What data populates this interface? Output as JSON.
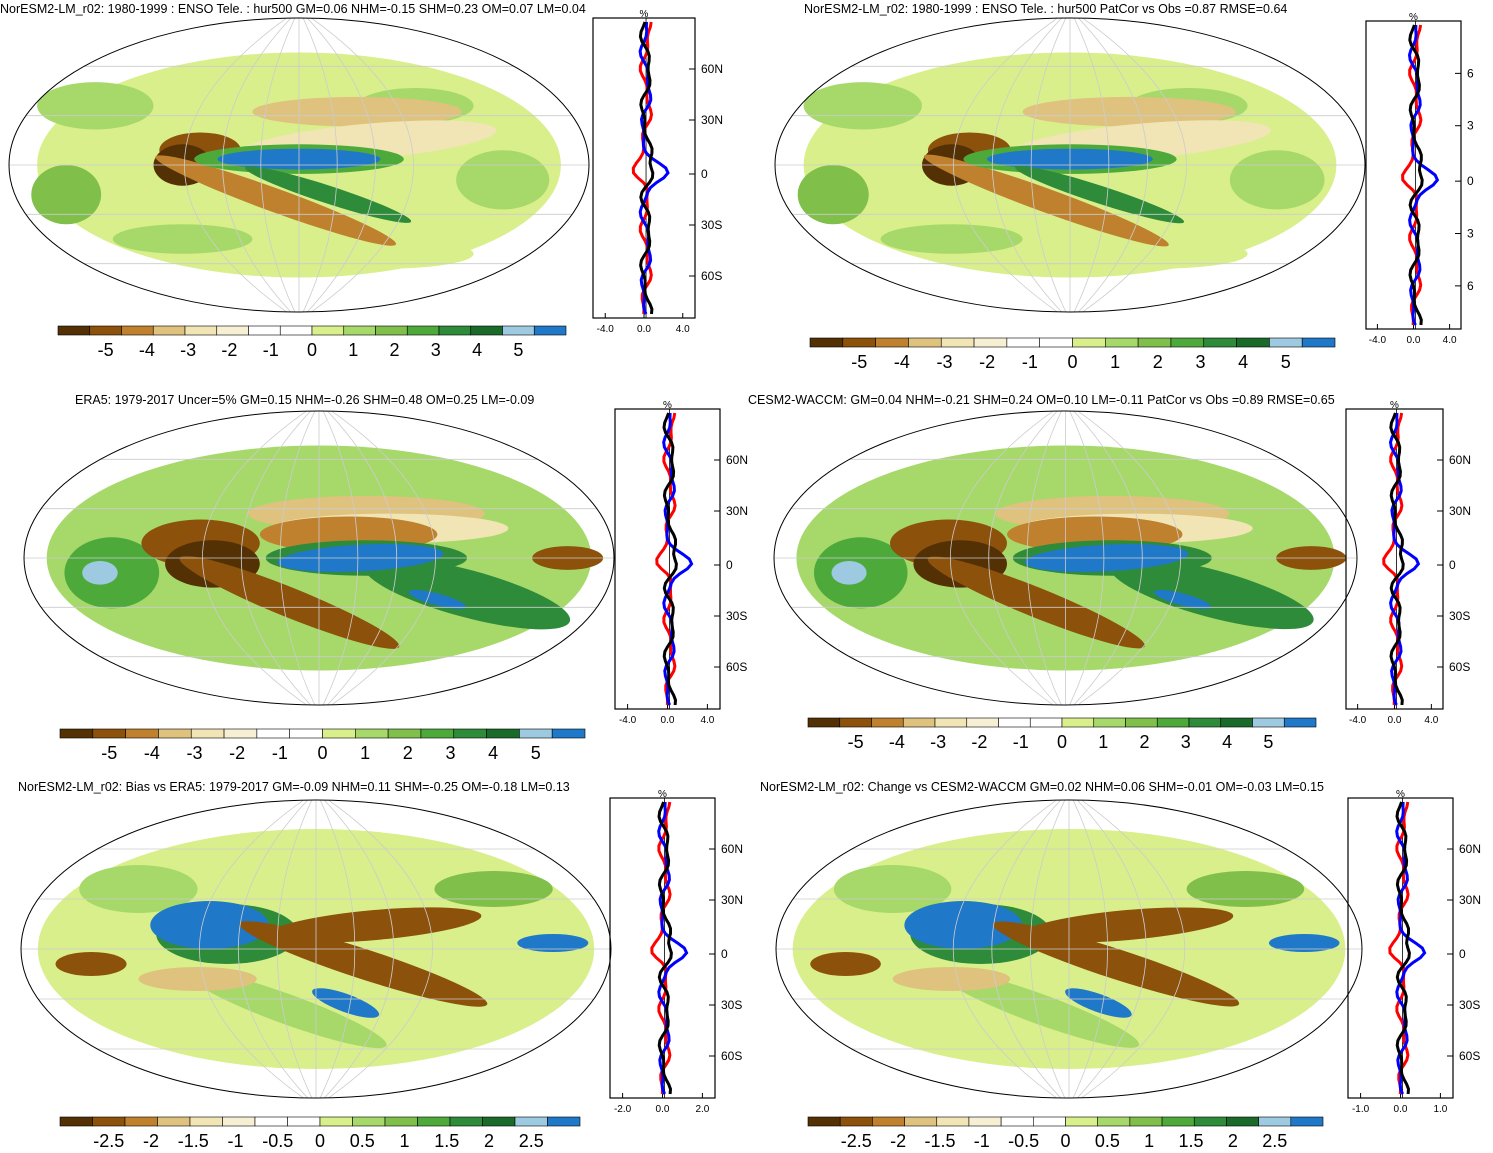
{
  "panels": [
    {
      "id": "p1",
      "title": "NorESM2-LM_r02: 1980-1999 : ENSO Tele. : hur500 GM=0.06 NHM=-0.15 SHM=0.23 OM=0.07 LM=0.04",
      "profile": {
        "unit": "%",
        "lat_ticks": [
          "60N",
          "30N",
          "0",
          "30S",
          "60S"
        ],
        "x_ticks": [
          "-4.0",
          "0.0",
          "4.0"
        ]
      },
      "colorbar": {
        "labels": [
          "-5",
          "-4",
          "-3",
          "-2",
          "-1",
          "0",
          "1",
          "2",
          "3",
          "4",
          "5"
        ]
      }
    },
    {
      "id": "p2",
      "title": "NorESM2-LM_r02: 1980-1999 : ENSO Tele. : hur500 PatCor vs Obs =0.87 RMSE=0.64",
      "profile": {
        "unit": "%",
        "lat_ticks": [
          "6",
          "3",
          "0",
          "3",
          "6"
        ],
        "x_ticks": [
          "-4.0",
          "0.0",
          "4.0"
        ]
      },
      "colorbar": {
        "labels": [
          "-5",
          "-4",
          "-3",
          "-2",
          "-1",
          "0",
          "1",
          "2",
          "3",
          "4",
          "5"
        ]
      }
    },
    {
      "id": "p3",
      "title": "ERA5: 1979-2017 Uncer=5% GM=0.15 NHM=-0.26 SHM=0.48 OM=0.25 LM=-0.09",
      "profile": {
        "unit": "%",
        "lat_ticks": [
          "60N",
          "30N",
          "0",
          "30S",
          "60S"
        ],
        "x_ticks": [
          "-4.0",
          "0.0",
          "4.0"
        ]
      },
      "colorbar": {
        "labels": [
          "-5",
          "-4",
          "-3",
          "-2",
          "-1",
          "0",
          "1",
          "2",
          "3",
          "4",
          "5"
        ]
      }
    },
    {
      "id": "p4",
      "title": "CESM2-WACCM: GM=0.04 NHM=-0.21 SHM=0.24 OM=0.10 LM=-0.11 PatCor vs Obs =0.89 RMSE=0.65",
      "profile": {
        "unit": "%",
        "lat_ticks": [
          "60N",
          "30N",
          "0",
          "30S",
          "60S"
        ],
        "x_ticks": [
          "-4.0",
          "0.0",
          "4.0"
        ]
      },
      "colorbar": {
        "labels": [
          "-5",
          "-4",
          "-3",
          "-2",
          "-1",
          "0",
          "1",
          "2",
          "3",
          "4",
          "5"
        ]
      }
    },
    {
      "id": "p5",
      "title": "NorESM2-LM_r02: Bias vs ERA5: 1979-2017 GM=-0.09 NHM=0.11 SHM=-0.25 OM=-0.18 LM=0.13",
      "profile": {
        "unit": "%",
        "lat_ticks": [
          "60N",
          "30N",
          "0",
          "30S",
          "60S"
        ],
        "x_ticks": [
          "-2.0",
          "0.0",
          "2.0"
        ]
      },
      "colorbar": {
        "labels": [
          "-2.5",
          "-2",
          "-1.5",
          "-1",
          "-0.5",
          "0",
          "0.5",
          "1",
          "1.5",
          "2",
          "2.5"
        ]
      }
    },
    {
      "id": "p6",
      "title": "NorESM2-LM_r02: Change vs CESM2-WACCM GM=0.02 NHM=0.06 SHM=-0.01 OM=-0.03 LM=0.15",
      "profile": {
        "unit": "%",
        "lat_ticks": [
          "60N",
          "30N",
          "0",
          "30S",
          "60S"
        ],
        "x_ticks": [
          "-1.0",
          "0.0",
          "1.0"
        ]
      },
      "colorbar": {
        "labels": [
          "-2.5",
          "-2",
          "-1.5",
          "-1",
          "-0.5",
          "0",
          "0.5",
          "1",
          "1.5",
          "2",
          "2.5"
        ]
      }
    }
  ],
  "colors": {
    "palette": [
      "#543005",
      "#8c510a",
      "#bf812d",
      "#dfc27d",
      "#f1e4b5",
      "#f6efd4",
      "#ffffff",
      "#ffffff",
      "#d9ef8b",
      "#a6d96a",
      "#7fbf4a",
      "#4daa3a",
      "#2e8b3a",
      "#1a6a2a",
      "#9ecae1",
      "#1f78c8"
    ],
    "obs_line": "#0000ff",
    "model_line": "#ff0000",
    "mean_line": "#000000"
  }
}
